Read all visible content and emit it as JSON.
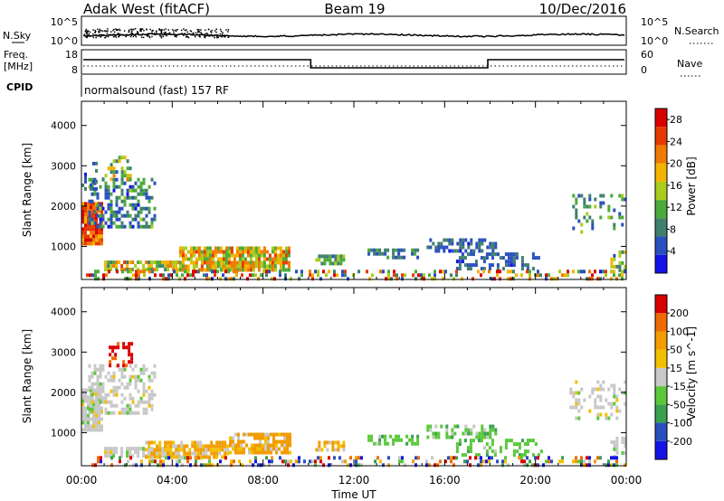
{
  "header": {
    "station": "Adak West (fitACF)",
    "beam": "Beam 19",
    "date": "10/Dec/2016"
  },
  "panels": {
    "nsky_label": "N.Sky",
    "nsearch_label": "N.Search",
    "nsky_ticks": [
      "10^5",
      "10^0"
    ],
    "nsearch_ticks": [
      "10^5",
      "10^0"
    ],
    "freq_label": "Freq.",
    "freq_unit": "[MHz]",
    "freq_ticks": [
      "18",
      "8"
    ],
    "nave_label": "Nave",
    "nave_ticks": [
      "60",
      "0"
    ],
    "cpid_label": "CPID",
    "cpid_text": "normalsound (fast) 157 RF"
  },
  "colors": {
    "power": [
      "#1414e6",
      "#2a4fbf",
      "#3f7f6e",
      "#4aaa3a",
      "#aacc1a",
      "#f2b400",
      "#f07a00",
      "#e63a00",
      "#d90000"
    ],
    "velocity": [
      "#d90000",
      "#f06a00",
      "#f29c00",
      "#f2c000",
      "#c8c8c8",
      "#5ac83a",
      "#3aa050",
      "#2a4fbf",
      "#1414e6"
    ]
  },
  "chart_data": [
    {
      "type": "heatmap",
      "name": "power",
      "xlabel": "",
      "ylabel": "Slant Range [km]",
      "x_ticks": [
        "00:00",
        "04:00",
        "08:00",
        "12:00",
        "16:00",
        "20:00",
        "00:00"
      ],
      "xlim": [
        0,
        24
      ],
      "ylim": [
        180,
        4600
      ],
      "y_ticks": [
        1000,
        2000,
        3000,
        4000
      ],
      "colorbar": {
        "label": "Power [dB]",
        "ticks": [
          4,
          8,
          12,
          16,
          20,
          24,
          28
        ],
        "range": [
          0,
          30
        ]
      },
      "regions": [
        {
          "t0": 0.0,
          "t1": 0.9,
          "r0": 1100,
          "r1": 2100,
          "min": 18,
          "max": 30,
          "density": 0.95
        },
        {
          "t0": 0.3,
          "t1": 3.2,
          "r0": 1500,
          "r1": 2700,
          "min": 3,
          "max": 14,
          "density": 0.45
        },
        {
          "t0": 0.9,
          "t1": 2.2,
          "r0": 2700,
          "r1": 3250,
          "min": 6,
          "max": 22,
          "density": 0.35
        },
        {
          "t0": 0.0,
          "t1": 0.6,
          "r0": 2400,
          "r1": 3100,
          "min": 3,
          "max": 10,
          "density": 0.3
        },
        {
          "t0": 1.0,
          "t1": 4.3,
          "r0": 400,
          "r1": 650,
          "min": 8,
          "max": 24,
          "density": 0.8
        },
        {
          "t0": 4.3,
          "t1": 9.2,
          "r0": 430,
          "r1": 1000,
          "min": 10,
          "max": 26,
          "density": 0.85
        },
        {
          "t0": 10.3,
          "t1": 11.6,
          "r0": 550,
          "r1": 800,
          "min": 6,
          "max": 16,
          "density": 0.7
        },
        {
          "t0": 12.6,
          "t1": 14.8,
          "r0": 700,
          "r1": 950,
          "min": 4,
          "max": 12,
          "density": 0.6
        },
        {
          "t0": 15.2,
          "t1": 18.2,
          "r0": 850,
          "r1": 1200,
          "min": 3,
          "max": 10,
          "density": 0.55
        },
        {
          "t0": 16.5,
          "t1": 20.3,
          "r0": 480,
          "r1": 850,
          "min": 3,
          "max": 9,
          "density": 0.4
        },
        {
          "t0": 21.5,
          "t1": 24.0,
          "r0": 1400,
          "r1": 2300,
          "min": 3,
          "max": 14,
          "density": 0.3
        },
        {
          "t0": 23.3,
          "t1": 24.0,
          "r0": 400,
          "r1": 900,
          "min": 4,
          "max": 20,
          "density": 0.5
        },
        {
          "t0": 0.2,
          "t1": 24.0,
          "r0": 200,
          "r1": 420,
          "min": 3,
          "max": 30,
          "density": 0.35
        }
      ]
    },
    {
      "type": "heatmap",
      "name": "velocity",
      "xlabel": "Time UT",
      "ylabel": "Slant Range [km]",
      "x_ticks": [
        "00:00",
        "04:00",
        "08:00",
        "12:00",
        "16:00",
        "20:00",
        "00:00"
      ],
      "xlim": [
        0,
        24
      ],
      "ylim": [
        180,
        4600
      ],
      "y_ticks": [
        1000,
        2000,
        3000,
        4000
      ],
      "colorbar": {
        "label": "Velocity [m s^-1]",
        "ticks": [
          200,
          100,
          50,
          15,
          -15,
          -50,
          -100,
          -200
        ]
      },
      "regions": [
        {
          "t0": 0.0,
          "t1": 0.9,
          "r0": 1100,
          "r1": 2100,
          "v": "grey",
          "density": 0.95
        },
        {
          "t0": 0.3,
          "t1": 3.2,
          "r0": 1500,
          "r1": 2700,
          "v": "grey",
          "density": 0.45
        },
        {
          "t0": 1.2,
          "t1": 2.2,
          "r0": 2700,
          "r1": 3250,
          "v": "red",
          "density": 0.4
        },
        {
          "t0": 1.0,
          "t1": 4.3,
          "r0": 400,
          "r1": 650,
          "v": "grey",
          "density": 0.8
        },
        {
          "t0": 2.8,
          "t1": 6.5,
          "r0": 430,
          "r1": 800,
          "v": "orange",
          "density": 0.8
        },
        {
          "t0": 6.5,
          "t1": 9.2,
          "r0": 550,
          "r1": 1000,
          "v": "orange",
          "density": 0.8
        },
        {
          "t0": 10.3,
          "t1": 11.6,
          "r0": 550,
          "r1": 800,
          "v": "orange",
          "density": 0.7
        },
        {
          "t0": 12.6,
          "t1": 14.8,
          "r0": 700,
          "r1": 950,
          "v": "green",
          "density": 0.55
        },
        {
          "t0": 15.2,
          "t1": 18.2,
          "r0": 850,
          "r1": 1200,
          "v": "green",
          "density": 0.55
        },
        {
          "t0": 16.5,
          "t1": 20.3,
          "r0": 480,
          "r1": 850,
          "v": "green",
          "density": 0.4
        },
        {
          "t0": 21.5,
          "t1": 24.0,
          "r0": 1400,
          "r1": 2300,
          "v": "grey",
          "density": 0.3
        },
        {
          "t0": 23.3,
          "t1": 24.0,
          "r0": 400,
          "r1": 900,
          "v": "grey",
          "density": 0.5
        },
        {
          "t0": 0.2,
          "t1": 24.0,
          "r0": 200,
          "r1": 420,
          "v": "mixed",
          "density": 0.35
        }
      ]
    }
  ]
}
